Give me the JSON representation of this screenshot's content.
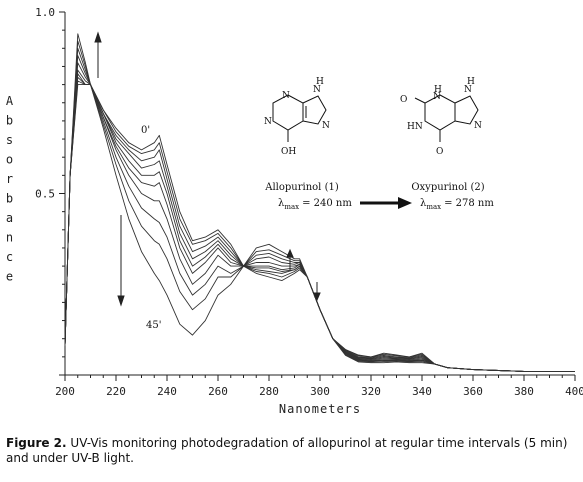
{
  "chart_data": {
    "type": "line",
    "xlabel": "Nanometers",
    "ylabel": "Absorbance",
    "xlim": [
      200,
      400
    ],
    "ylim": [
      0,
      1.0
    ],
    "x_ticks": [
      "200",
      "220",
      "240",
      "260",
      "280",
      "300",
      "320",
      "340",
      "360",
      "380",
      "400"
    ],
    "y_ticks": [
      "0.5",
      "1.0"
    ],
    "grid": false,
    "x": [
      200,
      202,
      205,
      208,
      210,
      215,
      220,
      225,
      230,
      235,
      237,
      240,
      245,
      250,
      255,
      260,
      265,
      270,
      275,
      280,
      285,
      290,
      292,
      295,
      300,
      305,
      310,
      315,
      320,
      325,
      330,
      335,
      340,
      345,
      350,
      360,
      380,
      400
    ],
    "series": [
      {
        "values": [
          0.08,
          0.55,
          0.94,
          0.86,
          0.8,
          0.73,
          0.68,
          0.64,
          0.62,
          0.64,
          0.66,
          0.58,
          0.45,
          0.37,
          0.38,
          0.4,
          0.36,
          0.3,
          0.28,
          0.27,
          0.26,
          0.28,
          0.29,
          0.27,
          0.18,
          0.1,
          0.07,
          0.055,
          0.05,
          0.06,
          0.055,
          0.05,
          0.06,
          0.03,
          0.02,
          0.015,
          0.01,
          0.01
        ]
      },
      {
        "values": [
          0.08,
          0.55,
          0.92,
          0.85,
          0.8,
          0.73,
          0.67,
          0.63,
          0.61,
          0.62,
          0.64,
          0.56,
          0.43,
          0.36,
          0.37,
          0.39,
          0.35,
          0.3,
          0.285,
          0.28,
          0.27,
          0.285,
          0.295,
          0.27,
          0.18,
          0.1,
          0.07,
          0.053,
          0.05,
          0.057,
          0.053,
          0.05,
          0.057,
          0.03,
          0.02,
          0.015,
          0.01,
          0.01
        ]
      },
      {
        "values": [
          0.08,
          0.55,
          0.9,
          0.84,
          0.8,
          0.72,
          0.66,
          0.62,
          0.59,
          0.6,
          0.62,
          0.54,
          0.41,
          0.34,
          0.355,
          0.38,
          0.34,
          0.3,
          0.29,
          0.285,
          0.28,
          0.29,
          0.3,
          0.27,
          0.18,
          0.1,
          0.068,
          0.05,
          0.048,
          0.054,
          0.05,
          0.048,
          0.054,
          0.03,
          0.02,
          0.015,
          0.01,
          0.01
        ]
      },
      {
        "values": [
          0.08,
          0.55,
          0.88,
          0.83,
          0.8,
          0.72,
          0.65,
          0.61,
          0.57,
          0.58,
          0.59,
          0.52,
          0.39,
          0.32,
          0.34,
          0.37,
          0.33,
          0.3,
          0.295,
          0.295,
          0.285,
          0.29,
          0.3,
          0.27,
          0.18,
          0.1,
          0.066,
          0.048,
          0.046,
          0.051,
          0.048,
          0.046,
          0.051,
          0.03,
          0.02,
          0.015,
          0.01,
          0.01
        ]
      },
      {
        "values": [
          0.08,
          0.55,
          0.86,
          0.82,
          0.8,
          0.72,
          0.64,
          0.59,
          0.55,
          0.55,
          0.56,
          0.5,
          0.37,
          0.3,
          0.325,
          0.36,
          0.32,
          0.3,
          0.3,
          0.3,
          0.29,
          0.295,
          0.305,
          0.27,
          0.18,
          0.1,
          0.064,
          0.046,
          0.044,
          0.048,
          0.046,
          0.044,
          0.048,
          0.03,
          0.02,
          0.015,
          0.01,
          0.01
        ]
      },
      {
        "values": [
          0.08,
          0.55,
          0.84,
          0.81,
          0.8,
          0.71,
          0.63,
          0.57,
          0.53,
          0.52,
          0.53,
          0.47,
          0.35,
          0.28,
          0.31,
          0.35,
          0.31,
          0.3,
          0.31,
          0.31,
          0.3,
          0.3,
          0.305,
          0.27,
          0.18,
          0.1,
          0.062,
          0.044,
          0.042,
          0.045,
          0.044,
          0.042,
          0.045,
          0.03,
          0.02,
          0.015,
          0.01,
          0.01
        ]
      },
      {
        "values": [
          0.08,
          0.55,
          0.83,
          0.8,
          0.8,
          0.71,
          0.62,
          0.55,
          0.5,
          0.48,
          0.48,
          0.43,
          0.32,
          0.25,
          0.28,
          0.33,
          0.3,
          0.3,
          0.32,
          0.325,
          0.31,
          0.305,
          0.31,
          0.27,
          0.18,
          0.1,
          0.06,
          0.042,
          0.04,
          0.042,
          0.042,
          0.04,
          0.042,
          0.03,
          0.02,
          0.015,
          0.01,
          0.01
        ]
      },
      {
        "values": [
          0.08,
          0.55,
          0.82,
          0.8,
          0.8,
          0.7,
          0.6,
          0.52,
          0.46,
          0.43,
          0.42,
          0.38,
          0.28,
          0.22,
          0.25,
          0.3,
          0.28,
          0.3,
          0.33,
          0.335,
          0.32,
          0.31,
          0.31,
          0.27,
          0.18,
          0.1,
          0.058,
          0.04,
          0.038,
          0.04,
          0.04,
          0.038,
          0.04,
          0.03,
          0.02,
          0.015,
          0.01,
          0.01
        ]
      },
      {
        "values": [
          0.08,
          0.55,
          0.81,
          0.8,
          0.8,
          0.69,
          0.58,
          0.48,
          0.41,
          0.37,
          0.36,
          0.32,
          0.23,
          0.18,
          0.21,
          0.27,
          0.27,
          0.3,
          0.34,
          0.345,
          0.33,
          0.315,
          0.315,
          0.27,
          0.18,
          0.1,
          0.056,
          0.038,
          0.036,
          0.037,
          0.038,
          0.036,
          0.037,
          0.03,
          0.02,
          0.015,
          0.01,
          0.01
        ]
      },
      {
        "values": [
          0.08,
          0.55,
          0.8,
          0.8,
          0.8,
          0.68,
          0.55,
          0.43,
          0.34,
          0.28,
          0.26,
          0.22,
          0.14,
          0.11,
          0.15,
          0.22,
          0.25,
          0.3,
          0.35,
          0.36,
          0.34,
          0.32,
          0.32,
          0.27,
          0.18,
          0.1,
          0.054,
          0.036,
          0.034,
          0.034,
          0.036,
          0.034,
          0.034,
          0.03,
          0.02,
          0.015,
          0.01,
          0.01
        ]
      }
    ],
    "annotations": [
      "0'",
      "45'"
    ]
  },
  "scheme": {
    "reactant_name": "Allopurinol (1)",
    "product_name": "Oxypurinol (2)",
    "reactant_lambda_prefix": "λ",
    "reactant_lambda_sub": "max",
    "reactant_lambda_value": "= 240 nm",
    "product_lambda_prefix": "λ",
    "product_lambda_sub": "max",
    "product_lambda_value": "= 278 nm",
    "atoms": {
      "N": "N",
      "NH": "NH",
      "HN": "HN",
      "H": "H",
      "OH": "OH",
      "O": "O"
    }
  },
  "caption": {
    "label": "Figure 2.",
    "text": " UV-Vis monitoring photodegradation of allopurinol at regular time intervals (5 min) and under UV-B light."
  }
}
